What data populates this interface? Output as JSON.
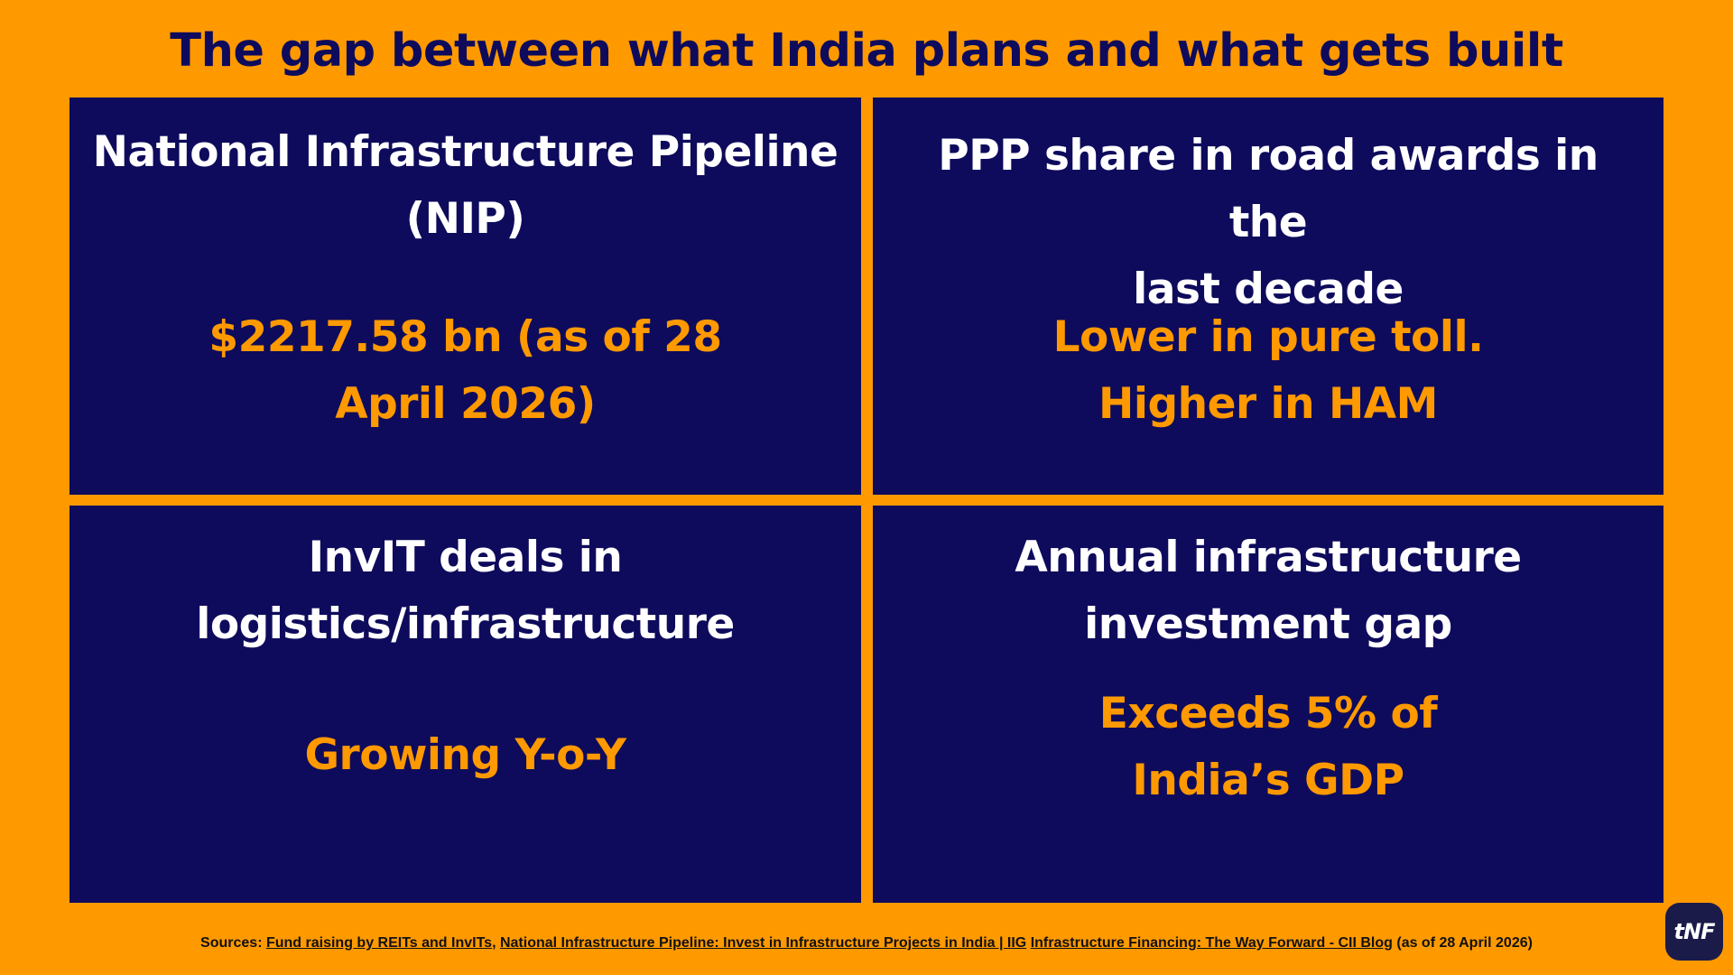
{
  "title": "The gap between what India plans and what gets built",
  "cards": [
    {
      "heading_lines": [
        "National Infrastructure Pipeline",
        "(NIP)"
      ],
      "value_lines": [
        "$2217.58 bn (as of 28",
        "April 2026)"
      ]
    },
    {
      "heading_lines": [
        "PPP share in road awards in the",
        "last decade"
      ],
      "value_lines": [
        "Lower in pure toll.",
        "Higher in HAM"
      ]
    },
    {
      "heading_lines": [
        "InvIT deals in",
        "logistics/infrastructure"
      ],
      "value_lines": [
        "Growing Y-o-Y"
      ]
    },
    {
      "heading_lines": [
        "Annual infrastructure",
        "investment gap"
      ],
      "value_lines": [
        "Exceeds 5% of",
        "India’s GDP"
      ]
    }
  ],
  "sources": {
    "prefix": "Sources:",
    "links": [
      "Fund raising by REITs and InvITs",
      "National Infrastructure Pipeline: Invest in Infrastructure Projects in India | IIG",
      "Infrastructure Financing: The Way Forward - CII Blog"
    ],
    "suffix": "(as of 28 April 2026)"
  },
  "logo_text": "tNF",
  "colors": {
    "background": "#FF9900",
    "card": "#0E0B5C",
    "heading_text": "#FFFFFF",
    "value_text": "#FF9900",
    "title_text": "#0E0B5C"
  }
}
